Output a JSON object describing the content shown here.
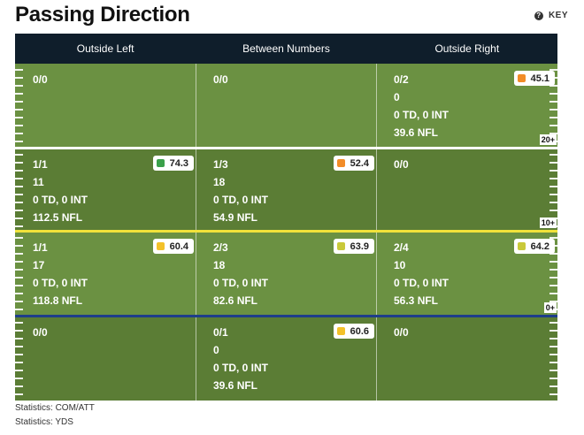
{
  "title": "Passing Direction",
  "key_label": "KEY",
  "columns": [
    "Outside Left",
    "Between Numbers",
    "Outside Right"
  ],
  "colors": {
    "zone_a": "#6b9142",
    "zone_b": "#5b7d35",
    "div_white": "#ffffff",
    "div_yellow": "#f1e23a",
    "div_blue": "#1e3e8a",
    "grade_green": "#3aa04a",
    "grade_orange": "#f28c28",
    "grade_yellow": "#f3c12a",
    "grade_olive": "#c9c93a"
  },
  "zones": [
    {
      "yard_label": "20+",
      "cells": [
        {
          "lines": [
            "0/0"
          ],
          "grade": null
        },
        {
          "lines": [
            "0/0"
          ],
          "grade": null
        },
        {
          "lines": [
            "0/2",
            "0",
            "0 TD, 0 INT",
            "39.6 NFL"
          ],
          "grade": {
            "value": "45.1",
            "color": "#f28c28"
          }
        }
      ]
    },
    {
      "yard_label": "10+",
      "cells": [
        {
          "lines": [
            "1/1",
            "11",
            "0 TD, 0 INT",
            "112.5 NFL"
          ],
          "grade": {
            "value": "74.3",
            "color": "#3aa04a"
          }
        },
        {
          "lines": [
            "1/3",
            "18",
            "0 TD, 0 INT",
            "54.9 NFL"
          ],
          "grade": {
            "value": "52.4",
            "color": "#f28c28"
          }
        },
        {
          "lines": [
            "0/0"
          ],
          "grade": null
        }
      ]
    },
    {
      "yard_label": "0+",
      "cells": [
        {
          "lines": [
            "1/1",
            "17",
            "0 TD, 0 INT",
            "118.8 NFL"
          ],
          "grade": {
            "value": "60.4",
            "color": "#f3c12a"
          }
        },
        {
          "lines": [
            "2/3",
            "18",
            "0 TD, 0 INT",
            "82.6 NFL"
          ],
          "grade": {
            "value": "63.9",
            "color": "#c9c93a"
          }
        },
        {
          "lines": [
            "2/4",
            "10",
            "0 TD, 0 INT",
            "56.3 NFL"
          ],
          "grade": {
            "value": "64.2",
            "color": "#c9c93a"
          }
        }
      ]
    },
    {
      "yard_label": "",
      "cells": [
        {
          "lines": [
            "0/0"
          ],
          "grade": null
        },
        {
          "lines": [
            "0/1",
            "0",
            "0 TD, 0 INT",
            "39.6 NFL"
          ],
          "grade": {
            "value": "60.6",
            "color": "#f3c12a"
          }
        },
        {
          "lines": [
            "0/0"
          ],
          "grade": null
        }
      ]
    }
  ],
  "footer": [
    "Statistics: COM/ATT",
    "Statistics: YDS"
  ]
}
